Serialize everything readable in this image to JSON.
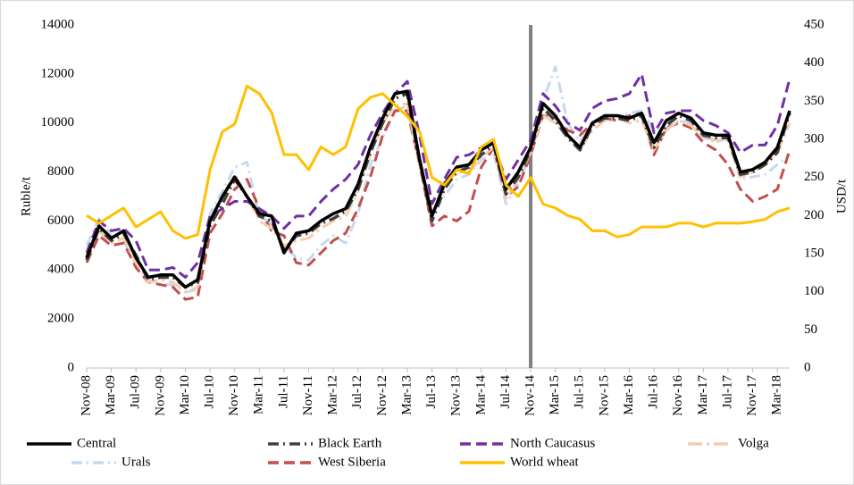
{
  "chart_data": {
    "type": "line",
    "y_label": "Ruble/t",
    "y2_label": "USD/t",
    "categories": [
      "Nov-08",
      null,
      "Mar-09",
      null,
      "Jul-09",
      null,
      "Nov-09",
      null,
      "Mar-10",
      null,
      "Jul-10",
      null,
      "Nov-10",
      null,
      "Mar-11",
      null,
      "Jul-11",
      null,
      "Nov-11",
      null,
      "Mar-12",
      null,
      "Jul-12",
      null,
      "Nov-12",
      null,
      "Mar-13",
      null,
      "Jul-13",
      null,
      "Nov-13",
      null,
      "Mar-14",
      null,
      "Jul-14",
      null,
      "Nov-14",
      null,
      "Mar-15",
      null,
      "Jul-15",
      null,
      "Nov-15",
      null,
      "Mar-16",
      null,
      "Jul-16",
      null,
      "Nov-16",
      null,
      "Mar-17",
      null,
      "Jul-17",
      null,
      "Nov-17",
      null,
      "Mar-18",
      null
    ],
    "ylim": [
      0,
      14000
    ],
    "yticks": [
      0,
      2000,
      4000,
      6000,
      8000,
      10000,
      12000,
      14000
    ],
    "y2lim": [
      0,
      450
    ],
    "y2ticks": [
      0,
      50,
      100,
      150,
      200,
      250,
      300,
      350,
      400,
      450
    ],
    "series": [
      {
        "name": "Central",
        "color": "#000000",
        "style": "solid",
        "values": [
          4500,
          5800,
          5300,
          5600,
          4500,
          3700,
          3800,
          3800,
          3300,
          3600,
          6000,
          7000,
          7800,
          7000,
          6300,
          6200,
          4700,
          5500,
          5600,
          6000,
          6300,
          6500,
          7500,
          9000,
          10200,
          11200,
          11300,
          8500,
          6200,
          7500,
          8200,
          8300,
          8900,
          9200,
          7300,
          8000,
          9000,
          10800,
          10300,
          9500,
          9000,
          10000,
          10300,
          10300,
          10200,
          10400,
          9200,
          10100,
          10400,
          10200,
          9600,
          9500,
          9500,
          8000,
          8100,
          8400,
          9000,
          10500
        ]
      },
      {
        "name": "Black Earth",
        "color": "#404040",
        "style": "dashdot",
        "values": [
          4400,
          5700,
          5200,
          5500,
          4600,
          3600,
          3700,
          3700,
          3300,
          3500,
          5800,
          6700,
          7700,
          7000,
          6200,
          6000,
          4800,
          5400,
          5500,
          5900,
          6100,
          6400,
          7300,
          8800,
          10000,
          11000,
          11200,
          8400,
          6000,
          7300,
          8000,
          8200,
          8700,
          9100,
          7100,
          7800,
          8900,
          10600,
          10100,
          9400,
          8900,
          9900,
          10200,
          10200,
          10100,
          10300,
          9000,
          9900,
          10300,
          10100,
          9500,
          9400,
          9400,
          7900,
          8000,
          8300,
          8800,
          10400
        ]
      },
      {
        "name": "North Caucasus",
        "color": "#7030a0",
        "style": "dash",
        "values": [
          4700,
          6000,
          5600,
          5700,
          5200,
          4000,
          4000,
          4100,
          3700,
          4300,
          6200,
          6500,
          6800,
          6800,
          6500,
          6200,
          5700,
          6200,
          6200,
          6800,
          7300,
          7700,
          8300,
          9500,
          10400,
          11200,
          11700,
          9500,
          6700,
          7700,
          8600,
          8700,
          9000,
          9100,
          7700,
          8500,
          9300,
          11200,
          10700,
          10000,
          9700,
          10600,
          10900,
          11000,
          11200,
          12000,
          9600,
          10400,
          10500,
          10500,
          10100,
          9900,
          9600,
          8800,
          9100,
          9100,
          9900,
          11800
        ]
      },
      {
        "name": "Volga",
        "color": "#f8cbad",
        "style": "longdashdot",
        "values": [
          4600,
          5600,
          5100,
          5300,
          4300,
          3500,
          3600,
          3500,
          3100,
          3300,
          6000,
          7000,
          7900,
          7000,
          6000,
          5700,
          5000,
          5200,
          5300,
          5700,
          6000,
          6200,
          7200,
          8700,
          10000,
          10700,
          10800,
          8200,
          6200,
          7400,
          8000,
          8000,
          8600,
          9000,
          6900,
          7700,
          8800,
          10300,
          10000,
          9500,
          8900,
          9700,
          10100,
          10200,
          10000,
          10100,
          8900,
          9700,
          10100,
          9900,
          9400,
          9300,
          9300,
          7800,
          8000,
          8300,
          8800,
          10000
        ]
      },
      {
        "name": "Urals",
        "color": "#c5d9f1",
        "style": "dashdot",
        "values": [
          5000,
          6100,
          5400,
          5200,
          4200,
          3600,
          3400,
          3400,
          3100,
          3200,
          6300,
          7200,
          8200,
          8400,
          6200,
          5900,
          5000,
          4500,
          4400,
          5000,
          5400,
          5100,
          6300,
          8300,
          9400,
          10500,
          10700,
          8400,
          6300,
          7000,
          7700,
          7900,
          8500,
          8800,
          6700,
          7500,
          8800,
          10900,
          12300,
          10000,
          9200,
          10000,
          10200,
          10300,
          10400,
          10500,
          9700,
          9800,
          10100,
          10000,
          9400,
          9200,
          9400,
          7700,
          7800,
          7900,
          8300,
          8700
        ]
      },
      {
        "name": "West Siberia",
        "color": "#c0504d",
        "style": "dash",
        "values": [
          4300,
          5400,
          5000,
          5100,
          4100,
          3500,
          3400,
          3300,
          2800,
          2900,
          5500,
          6300,
          7300,
          7700,
          6500,
          5600,
          5400,
          4300,
          4200,
          4700,
          5200,
          5500,
          6500,
          7800,
          9500,
          10500,
          10500,
          8300,
          5800,
          6200,
          6000,
          6400,
          8200,
          9000,
          7000,
          7400,
          8700,
          10300,
          10200,
          9700,
          9500,
          10000,
          10200,
          10100,
          10300,
          10400,
          8700,
          9800,
          10000,
          9800,
          9200,
          8900,
          8300,
          7300,
          6800,
          7000,
          7300,
          8900
        ]
      },
      {
        "name": "World wheat",
        "color": "#ffc000",
        "style": "solid",
        "axis": "y2",
        "values": [
          200,
          190,
          200,
          210,
          185,
          195,
          205,
          180,
          170,
          175,
          260,
          310,
          320,
          370,
          360,
          335,
          280,
          280,
          260,
          290,
          280,
          290,
          340,
          355,
          360,
          345,
          330,
          310,
          250,
          240,
          260,
          255,
          290,
          300,
          240,
          225,
          250,
          215,
          210,
          200,
          195,
          180,
          180,
          172,
          175,
          185,
          185,
          185,
          190,
          190,
          185,
          190,
          190,
          190,
          192,
          195,
          205,
          210
        ]
      }
    ]
  }
}
